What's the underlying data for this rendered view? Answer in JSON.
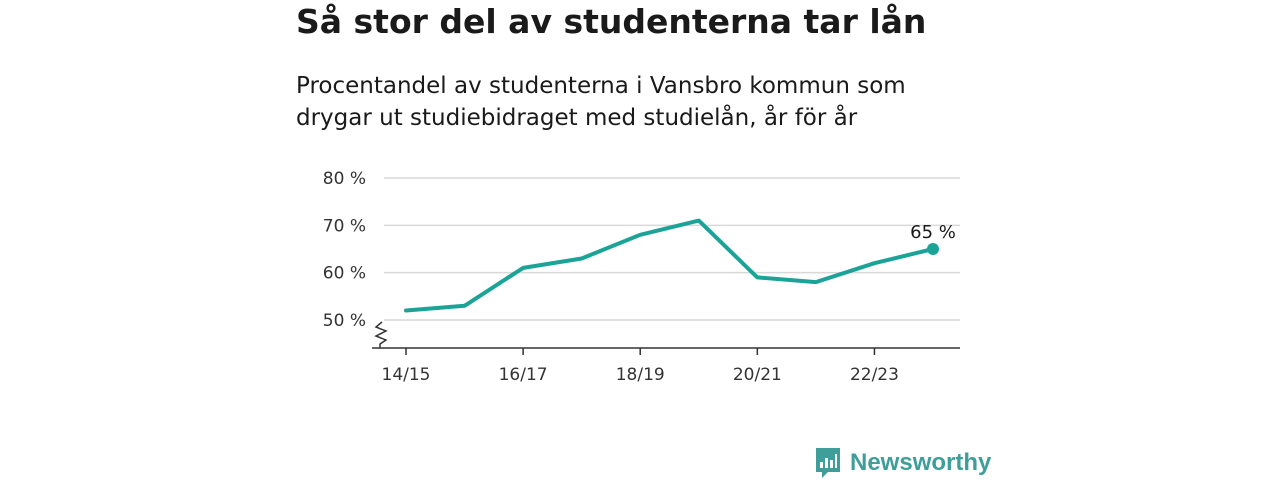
{
  "header": {
    "title": "Så stor del av studenterna tar lån",
    "subtitle_line1": "Procentandel av studenterna i Vansbro kommun som",
    "subtitle_line2": "drygar ut studiebidraget med studielån, år för år"
  },
  "brand": {
    "name": "Newsworthy",
    "icon": "newsworthy-logo-icon",
    "color": "#3f9e9a"
  },
  "chart_data": {
    "type": "line",
    "title": "",
    "xlabel": "",
    "ylabel": "",
    "x": [
      "14/15",
      "15/16",
      "16/17",
      "17/18",
      "18/19",
      "19/20",
      "20/21",
      "21/22",
      "22/23",
      "23/24"
    ],
    "xtick_labels": [
      "14/15",
      "16/17",
      "18/19",
      "20/21",
      "22/23"
    ],
    "ytick_labels": [
      "50 %",
      "60 %",
      "70 %",
      "80 %"
    ],
    "yticks": [
      50,
      60,
      70,
      80
    ],
    "ylim": [
      50,
      80
    ],
    "y_axis_break": true,
    "grid": true,
    "series": [
      {
        "values": [
          52,
          53,
          61,
          63,
          68,
          71,
          59,
          58,
          62,
          65
        ],
        "color": "#1aa396"
      }
    ],
    "annotation": {
      "index": 9,
      "label": "65 %"
    }
  }
}
